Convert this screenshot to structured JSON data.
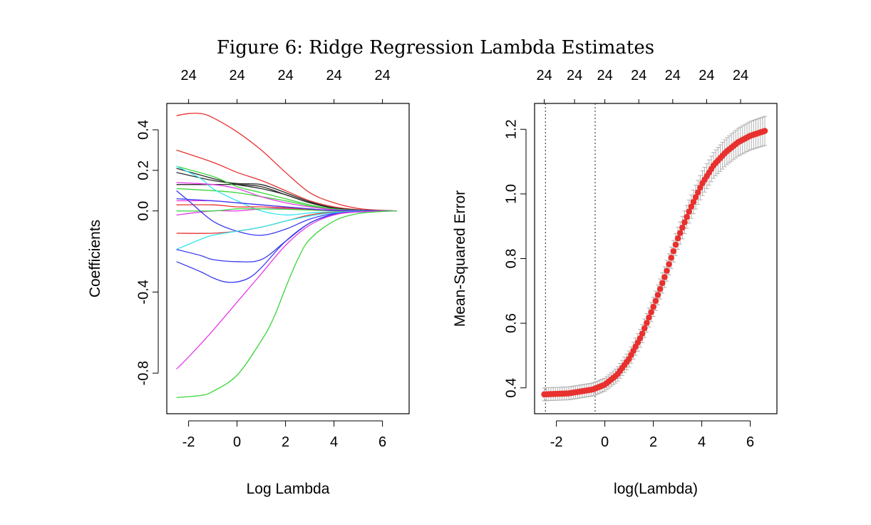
{
  "figure": {
    "title": "Figure 6: Ridge Regression Lambda Estimates"
  },
  "chart_data": [
    {
      "type": "line",
      "xlabel": "Log Lambda",
      "ylabel": "Coefficients",
      "xlim": [
        -2.9,
        7.1
      ],
      "ylim": [
        -1.0,
        0.53
      ],
      "xticks": [
        -2,
        0,
        2,
        4,
        6
      ],
      "yticks": [
        -0.8,
        -0.4,
        0.0,
        0.2,
        0.4
      ],
      "ytick_labels": [
        "-0.8",
        "-0.4",
        "0.0",
        "0.2",
        "0.4"
      ],
      "top_axis": {
        "ticks": [
          -2,
          0,
          2,
          4,
          6
        ],
        "labels": [
          "24",
          "24",
          "24",
          "24",
          "24"
        ]
      },
      "grid": false,
      "legend": "none",
      "series": [
        {
          "color": "#e8312f",
          "points": [
            [
              -2.5,
              0.47
            ],
            [
              -2,
              0.48
            ],
            [
              -1.5,
              0.48
            ],
            [
              -1,
              0.46
            ],
            [
              0,
              0.39
            ],
            [
              1,
              0.3
            ],
            [
              2,
              0.19
            ],
            [
              3,
              0.09
            ],
            [
              4,
              0.04
            ],
            [
              5,
              0.012
            ],
            [
              6,
              0.003
            ],
            [
              6.6,
              0
            ]
          ]
        },
        {
          "color": "#e8312f",
          "points": [
            [
              -2.5,
              0.3
            ],
            [
              -1,
              0.24
            ],
            [
              0,
              0.19
            ],
            [
              1,
              0.15
            ],
            [
              2,
              0.1
            ],
            [
              3,
              0.05
            ],
            [
              4,
              0.02
            ],
            [
              5,
              0.006
            ],
            [
              6,
              0.001
            ],
            [
              6.6,
              0
            ]
          ]
        },
        {
          "color": "#2a2a2a",
          "points": [
            [
              -2.5,
              0.21
            ],
            [
              -1,
              0.16
            ],
            [
              0,
              0.13
            ],
            [
              1,
              0.11
            ],
            [
              2,
              0.08
            ],
            [
              3,
              0.04
            ],
            [
              4,
              0.015
            ],
            [
              5,
              0.005
            ],
            [
              6,
              0.001
            ],
            [
              6.6,
              0
            ]
          ]
        },
        {
          "color": "#2a2a2a",
          "points": [
            [
              -2.5,
              0.19
            ],
            [
              -1,
              0.15
            ],
            [
              0,
              0.135
            ],
            [
              1,
              0.13
            ],
            [
              2,
              0.09
            ],
            [
              3,
              0.045
            ],
            [
              4,
              0.015
            ],
            [
              5,
              0.004
            ],
            [
              6,
              0.001
            ],
            [
              6.6,
              0
            ]
          ]
        },
        {
          "color": "#2a2a2a",
          "points": [
            [
              -2.5,
              0.13
            ],
            [
              -1,
              0.13
            ],
            [
              0,
              0.13
            ],
            [
              1,
              0.12
            ],
            [
              2,
              0.08
            ],
            [
              3,
              0.04
            ],
            [
              4,
              0.013
            ],
            [
              5,
              0.004
            ],
            [
              6.6,
              0
            ]
          ]
        },
        {
          "color": "#3ad63a",
          "points": [
            [
              -2.5,
              0.22
            ],
            [
              -1,
              0.17
            ],
            [
              0,
              0.12
            ],
            [
              1,
              0.09
            ],
            [
              2,
              0.06
            ],
            [
              3,
              0.03
            ],
            [
              4,
              0.01
            ],
            [
              5,
              0.003
            ],
            [
              6.6,
              0
            ]
          ]
        },
        {
          "color": "#3ad63a",
          "points": [
            [
              -2.5,
              0.11
            ],
            [
              -1,
              0.1
            ],
            [
              0,
              0.09
            ],
            [
              1,
              0.07
            ],
            [
              2,
              0.05
            ],
            [
              3,
              0.025
            ],
            [
              4,
              0.008
            ],
            [
              5,
              0.002
            ],
            [
              6.6,
              0
            ]
          ]
        },
        {
          "color": "#30e8f0",
          "points": [
            [
              -2.5,
              0.22
            ],
            [
              -1.5,
              0.16
            ],
            [
              -1,
              0.11
            ],
            [
              0,
              0.05
            ],
            [
              1,
              0.0
            ],
            [
              2,
              -0.02
            ],
            [
              3,
              -0.01
            ],
            [
              4,
              -0.004
            ],
            [
              5,
              -0.001
            ],
            [
              6.6,
              0
            ]
          ]
        },
        {
          "color": "#e83ae8",
          "points": [
            [
              -2.5,
              0.14
            ],
            [
              -1,
              0.13
            ],
            [
              0,
              0.11
            ],
            [
              1,
              0.07
            ],
            [
              2,
              0.04
            ],
            [
              3,
              0.02
            ],
            [
              4,
              0.006
            ],
            [
              5,
              0.002
            ],
            [
              6.6,
              0
            ]
          ]
        },
        {
          "color": "#e83ae8",
          "points": [
            [
              -2.5,
              0.05
            ],
            [
              -1,
              0.05
            ],
            [
              0,
              0.04
            ],
            [
              1,
              0.03
            ],
            [
              2,
              0.02
            ],
            [
              3,
              0.01
            ],
            [
              4,
              0.003
            ],
            [
              6.6,
              0
            ]
          ]
        },
        {
          "color": "#e83ae8",
          "points": [
            [
              -2.5,
              -0.02
            ],
            [
              -1,
              0.0
            ],
            [
              0,
              0.0
            ],
            [
              1,
              0.01
            ],
            [
              2,
              0.012
            ],
            [
              3,
              0.007
            ],
            [
              4,
              0.002
            ],
            [
              6.6,
              0
            ]
          ]
        },
        {
          "color": "#3ad63a",
          "points": [
            [
              -2.5,
              0.0
            ],
            [
              -1,
              0.0
            ],
            [
              0,
              0.01
            ],
            [
              1,
              0.01
            ],
            [
              2,
              0.008
            ],
            [
              3,
              0.004
            ],
            [
              4,
              0.001
            ],
            [
              6.6,
              0
            ]
          ]
        },
        {
          "color": "#e8312f",
          "points": [
            [
              -2.5,
              0.03
            ],
            [
              -1,
              0.03
            ],
            [
              0,
              0.02
            ],
            [
              1,
              0.02
            ],
            [
              2,
              0.015
            ],
            [
              3,
              0.008
            ],
            [
              4,
              0.002
            ],
            [
              6.6,
              0
            ]
          ]
        },
        {
          "color": "#3b3bf0",
          "points": [
            [
              -2.5,
              0.06
            ],
            [
              -1,
              0.05
            ],
            [
              0,
              0.04
            ],
            [
              1,
              0.03
            ],
            [
              2,
              0.02
            ],
            [
              3,
              0.01
            ],
            [
              4,
              0.003
            ],
            [
              6.6,
              0
            ]
          ]
        },
        {
          "color": "#3b3bf0",
          "points": [
            [
              -2.5,
              0.1
            ],
            [
              -2,
              0.05
            ],
            [
              -1,
              -0.05
            ],
            [
              0,
              -0.1
            ],
            [
              1,
              -0.12
            ],
            [
              2,
              -0.09
            ],
            [
              3,
              -0.04
            ],
            [
              4,
              -0.012
            ],
            [
              5,
              -0.003
            ],
            [
              6.6,
              0
            ]
          ]
        },
        {
          "color": "#e8312f",
          "points": [
            [
              -2.5,
              -0.11
            ],
            [
              -1,
              -0.11
            ],
            [
              0,
              -0.1
            ],
            [
              1,
              -0.08
            ],
            [
              2,
              -0.05
            ],
            [
              3,
              -0.02
            ],
            [
              4,
              -0.006
            ],
            [
              5,
              -0.002
            ],
            [
              6.6,
              0
            ]
          ]
        },
        {
          "color": "#30e8f0",
          "points": [
            [
              -2.5,
              -0.19
            ],
            [
              -1.5,
              -0.14
            ],
            [
              -1,
              -0.12
            ],
            [
              0,
              -0.1
            ],
            [
              1,
              -0.08
            ],
            [
              2,
              -0.05
            ],
            [
              3,
              -0.025
            ],
            [
              4,
              -0.008
            ],
            [
              5,
              -0.002
            ],
            [
              6.6,
              0
            ]
          ]
        },
        {
          "color": "#3b3bf0",
          "points": [
            [
              -2.5,
              -0.19
            ],
            [
              -1.5,
              -0.22
            ],
            [
              -1,
              -0.24
            ],
            [
              0,
              -0.25
            ],
            [
              1,
              -0.24
            ],
            [
              2,
              -0.15
            ],
            [
              3,
              -0.06
            ],
            [
              4,
              -0.018
            ],
            [
              5,
              -0.005
            ],
            [
              6.6,
              0
            ]
          ]
        },
        {
          "color": "#3b3bf0",
          "points": [
            [
              -2.5,
              -0.25
            ],
            [
              -1.5,
              -0.3
            ],
            [
              -1,
              -0.33
            ],
            [
              -0.5,
              -0.35
            ],
            [
              0,
              -0.35
            ],
            [
              0.5,
              -0.33
            ],
            [
              1,
              -0.28
            ],
            [
              2,
              -0.15
            ],
            [
              3,
              -0.06
            ],
            [
              4,
              -0.015
            ],
            [
              5,
              -0.004
            ],
            [
              6.6,
              0
            ]
          ]
        },
        {
          "color": "#e83ae8",
          "points": [
            [
              -2.5,
              -0.78
            ],
            [
              -2,
              -0.72
            ],
            [
              -1,
              -0.59
            ],
            [
              0,
              -0.45
            ],
            [
              1,
              -0.31
            ],
            [
              2,
              -0.17
            ],
            [
              3,
              -0.07
            ],
            [
              4,
              -0.02
            ],
            [
              5,
              -0.005
            ],
            [
              6.6,
              0
            ]
          ]
        },
        {
          "color": "#3ad63a",
          "points": [
            [
              -2.5,
              -0.92
            ],
            [
              -1.5,
              -0.91
            ],
            [
              -1,
              -0.89
            ],
            [
              0,
              -0.81
            ],
            [
              1,
              -0.64
            ],
            [
              1.5,
              -0.53
            ],
            [
              2,
              -0.38
            ],
            [
              2.5,
              -0.24
            ],
            [
              3,
              -0.14
            ],
            [
              4,
              -0.05
            ],
            [
              5,
              -0.013
            ],
            [
              6,
              -0.003
            ],
            [
              6.6,
              0
            ]
          ]
        }
      ]
    },
    {
      "type": "scatter",
      "xlabel": "log(Lambda)",
      "ylabel": "Mean-Squared Error",
      "xlim": [
        -2.9,
        7.1
      ],
      "ylim": [
        0.32,
        1.28
      ],
      "xticks": [
        -2,
        0,
        2,
        4,
        6
      ],
      "yticks": [
        0.4,
        0.6,
        0.8,
        1.0,
        1.2
      ],
      "ytick_labels": [
        "0.4",
        "0.6",
        "0.8",
        "1.0",
        "1.2"
      ],
      "top_axis": {
        "ticks": [
          -2.5,
          -1.25,
          0,
          1.4,
          2.8,
          4.2,
          5.6
        ],
        "labels": [
          "24",
          "24",
          "24",
          "24",
          "24",
          "24",
          "24"
        ]
      },
      "grid": false,
      "legend": "none",
      "vlines": [
        -2.45,
        -0.4
      ],
      "points_color": "#e8312f",
      "errorbar_color": "#b0b0b0",
      "series": [
        {
          "n_points": 100,
          "x_range": [
            -2.5,
            6.6
          ],
          "curve_x": [
            -2.5,
            -1.5,
            -0.5,
            0,
            0.5,
            1,
            1.5,
            2,
            2.5,
            3,
            3.5,
            4,
            4.5,
            5,
            5.5,
            6,
            6.6
          ],
          "curve_y": [
            0.38,
            0.383,
            0.395,
            0.41,
            0.44,
            0.49,
            0.56,
            0.65,
            0.75,
            0.86,
            0.95,
            1.03,
            1.09,
            1.13,
            1.16,
            1.18,
            1.195
          ],
          "error_halfwidth": [
            0.02,
            0.02,
            0.02,
            0.02,
            0.022,
            0.025,
            0.028,
            0.03,
            0.032,
            0.034,
            0.036,
            0.038,
            0.04,
            0.042,
            0.043,
            0.044,
            0.045
          ]
        }
      ]
    }
  ]
}
